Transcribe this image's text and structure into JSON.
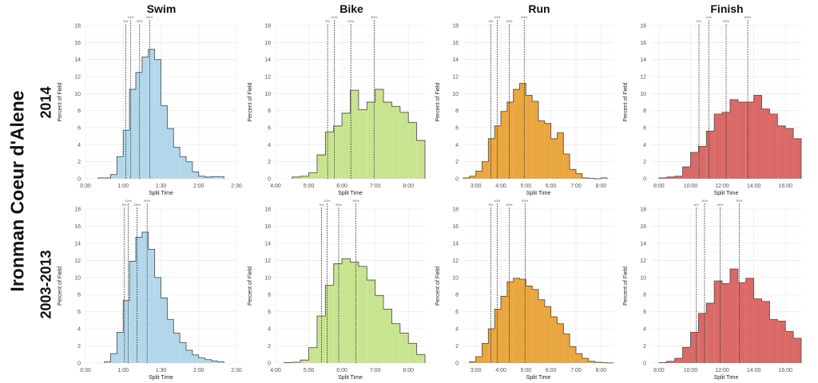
{
  "title": "Ironman Coeur d'Alene",
  "rows": [
    "2014",
    "2003-2013"
  ],
  "columns": [
    "Swim",
    "Bike",
    "Run",
    "Finish"
  ],
  "colors": {
    "Swim": "#b3d7ea",
    "Bike": "#c9e491",
    "Run": "#eaa63f",
    "Finish": "#d96a68",
    "outline": "#555555",
    "grid": "#ececec"
  },
  "chart_data": [
    {
      "type": "bar",
      "row": "2014",
      "title": "Swim",
      "xlabel": "Split Time",
      "ylabel": "Percent of Field",
      "grid": true,
      "xlim": [
        "0:30",
        "2:30"
      ],
      "ylim": [
        0,
        18
      ],
      "yticks": [
        0,
        2,
        4,
        6,
        8,
        10,
        12,
        14,
        16,
        18
      ],
      "xticks": [
        "0:30",
        "1:00",
        "1:30",
        "2:00",
        "2:30"
      ],
      "bin_start": "0:40",
      "bin_width": "0:05",
      "values": [
        0.1,
        0.1,
        0.5,
        2.6,
        5.7,
        10.5,
        12.5,
        14.3,
        15.2,
        14.0,
        8.6,
        5.9,
        3.7,
        2.6,
        2.0,
        0.8,
        0.3,
        0.2,
        0.25,
        0.25
      ],
      "percentiles": [
        {
          "label": "5%",
          "x": "1:02"
        },
        {
          "label": "10%",
          "x": "1:06"
        },
        {
          "label": "25%",
          "x": "1:13"
        },
        {
          "label": "50%",
          "x": "1:21"
        }
      ]
    },
    {
      "type": "bar",
      "row": "2014",
      "title": "Bike",
      "xlabel": "Split Time",
      "ylabel": "Percent of Field",
      "grid": true,
      "xlim": [
        "4:00",
        "8:30"
      ],
      "ylim": [
        0,
        18
      ],
      "yticks": [
        0,
        2,
        4,
        6,
        8,
        10,
        12,
        14,
        16,
        18
      ],
      "xticks": [
        "4:00",
        "5:00",
        "6:00",
        "7:00",
        "8:00"
      ],
      "bin_start": "4:30",
      "bin_width": "0:15",
      "values": [
        0.2,
        0.3,
        0.7,
        2.8,
        5.5,
        6.2,
        7.7,
        10.4,
        8.1,
        9.0,
        10.5,
        9.0,
        8.5,
        7.8,
        6.6,
        4.5
      ],
      "percentiles": [
        {
          "label": "5%",
          "x": "5:34"
        },
        {
          "label": "10%",
          "x": "5:46"
        },
        {
          "label": "25%",
          "x": "6:16"
        },
        {
          "label": "50%",
          "x": "6:58"
        }
      ]
    },
    {
      "type": "bar",
      "row": "2014",
      "title": "Run",
      "xlabel": "Split Time",
      "ylabel": "Percent of Field",
      "grid": true,
      "xlim": [
        "2:30",
        "8:30"
      ],
      "ylim": [
        0,
        18
      ],
      "yticks": [
        0,
        2,
        4,
        6,
        8,
        10,
        12,
        14,
        16,
        18
      ],
      "xticks": [
        "3:00",
        "4:00",
        "5:00",
        "6:00",
        "7:00",
        "8:00"
      ],
      "bin_start": "2:30",
      "bin_width": "0:15",
      "values": [
        0.1,
        0.3,
        0.9,
        2.0,
        4.7,
        6.2,
        7.9,
        9.0,
        10.5,
        11.2,
        9.8,
        9.1,
        6.8,
        6.5,
        4.7,
        5.4,
        2.9,
        1.1,
        0.6,
        0.1,
        0.05,
        0.0,
        0.1
      ],
      "percentiles": [
        {
          "label": "5%",
          "x": "3:36"
        },
        {
          "label": "10%",
          "x": "3:51"
        },
        {
          "label": "25%",
          "x": "4:20"
        },
        {
          "label": "50%",
          "x": "4:56"
        }
      ]
    },
    {
      "type": "bar",
      "row": "2014",
      "title": "Finish",
      "xlabel": "Split Time",
      "ylabel": "Percent of Field",
      "grid": true,
      "xlim": [
        "7:30",
        "17:00"
      ],
      "ylim": [
        0,
        18
      ],
      "yticks": [
        0,
        2,
        4,
        6,
        8,
        10,
        12,
        14,
        16,
        18
      ],
      "xticks": [
        "8:00",
        "10:00",
        "12:00",
        "14:00",
        "16:00"
      ],
      "bin_start": "8:00",
      "bin_width": "0:30",
      "values": [
        0.1,
        0.2,
        0.3,
        1.4,
        3.1,
        3.8,
        5.6,
        7.6,
        7.8,
        9.3,
        9.0,
        9.0,
        9.8,
        8.2,
        7.6,
        6.2,
        5.9,
        4.7
      ],
      "percentiles": [
        {
          "label": "5%",
          "x": "10:32"
        },
        {
          "label": "10%",
          "x": "11:09"
        },
        {
          "label": "25%",
          "x": "12:15"
        },
        {
          "label": "50%",
          "x": "13:37"
        }
      ]
    },
    {
      "type": "bar",
      "row": "2003-2013",
      "title": "Swim",
      "xlabel": "Split Time",
      "ylabel": "Percent of Field",
      "grid": true,
      "xlim": [
        "0:30",
        "2:30"
      ],
      "ylim": [
        0,
        18
      ],
      "yticks": [
        0,
        2,
        4,
        6,
        8,
        10,
        12,
        14,
        16,
        18
      ],
      "xticks": [
        "0:30",
        "1:00",
        "1:30",
        "2:00",
        "2:30"
      ],
      "bin_start": "0:45",
      "bin_width": "0:05",
      "values": [
        0.15,
        1.1,
        3.6,
        7.3,
        11.9,
        14.7,
        15.3,
        13.3,
        10.0,
        7.6,
        5.1,
        3.5,
        2.4,
        1.5,
        0.95,
        0.6,
        0.4,
        0.25,
        0.15
      ],
      "percentiles": [
        {
          "label": "5%",
          "x": "1:01"
        },
        {
          "label": "10%",
          "x": "1:04"
        },
        {
          "label": "25%",
          "x": "1:11"
        },
        {
          "label": "50%",
          "x": "1:19"
        }
      ]
    },
    {
      "type": "bar",
      "row": "2003-2013",
      "title": "Bike",
      "xlabel": "Split Time",
      "ylabel": "Percent of Field",
      "grid": true,
      "xlim": [
        "4:00",
        "8:30"
      ],
      "ylim": [
        0,
        18
      ],
      "yticks": [
        0,
        2,
        4,
        6,
        8,
        10,
        12,
        14,
        16,
        18
      ],
      "xticks": [
        "4:00",
        "5:00",
        "6:00",
        "7:00",
        "8:00"
      ],
      "bin_start": "4:15",
      "bin_width": "0:15",
      "values": [
        0.05,
        0.1,
        0.35,
        1.8,
        5.5,
        9.1,
        11.6,
        12.2,
        11.8,
        11.3,
        9.7,
        7.9,
        6.3,
        4.6,
        3.5,
        2.3,
        1.0
      ],
      "percentiles": [
        {
          "label": "5%",
          "x": "5:23"
        },
        {
          "label": "10%",
          "x": "5:33"
        },
        {
          "label": "25%",
          "x": "5:54"
        },
        {
          "label": "50%",
          "x": "6:25"
        }
      ]
    },
    {
      "type": "bar",
      "row": "2003-2013",
      "title": "Run",
      "xlabel": "Split Time",
      "ylabel": "Percent of Field",
      "grid": true,
      "xlim": [
        "2:30",
        "8:30"
      ],
      "ylim": [
        0,
        18
      ],
      "yticks": [
        0,
        2,
        4,
        6,
        8,
        10,
        12,
        14,
        16,
        18
      ],
      "xticks": [
        "3:00",
        "4:00",
        "5:00",
        "6:00",
        "7:00",
        "8:00"
      ],
      "bin_start": "2:45",
      "bin_width": "0:15",
      "values": [
        0.15,
        0.75,
        2.3,
        4.0,
        6.3,
        7.8,
        9.5,
        9.9,
        9.8,
        9.0,
        8.6,
        7.4,
        6.6,
        5.4,
        4.6,
        3.4,
        1.9,
        1.1,
        0.55,
        0.2,
        0.1,
        0.05,
        0.02
      ],
      "percentiles": [
        {
          "label": "5%",
          "x": "3:36"
        },
        {
          "label": "10%",
          "x": "3:51"
        },
        {
          "label": "25%",
          "x": "4:20"
        },
        {
          "label": "50%",
          "x": "4:58"
        }
      ]
    },
    {
      "type": "bar",
      "row": "2003-2013",
      "title": "Finish",
      "xlabel": "Split Time",
      "ylabel": "Percent of Field",
      "grid": true,
      "xlim": [
        "7:30",
        "17:00"
      ],
      "ylim": [
        0,
        18
      ],
      "yticks": [
        0,
        2,
        4,
        6,
        8,
        10,
        12,
        14,
        16,
        18
      ],
      "xticks": [
        "8:00",
        "10:00",
        "12:00",
        "14:00",
        "16:00"
      ],
      "bin_start": "8:00",
      "bin_width": "0:30",
      "values": [
        0.05,
        0.2,
        0.55,
        1.85,
        3.6,
        5.8,
        7.0,
        9.6,
        9.3,
        11.0,
        9.4,
        9.9,
        7.5,
        7.2,
        5.1,
        4.9,
        3.7,
        2.9
      ],
      "percentiles": [
        {
          "label": "5%",
          "x": "10:22"
        },
        {
          "label": "10%",
          "x": "10:53"
        },
        {
          "label": "25%",
          "x": "11:52"
        },
        {
          "label": "50%",
          "x": "13:05"
        }
      ]
    }
  ]
}
